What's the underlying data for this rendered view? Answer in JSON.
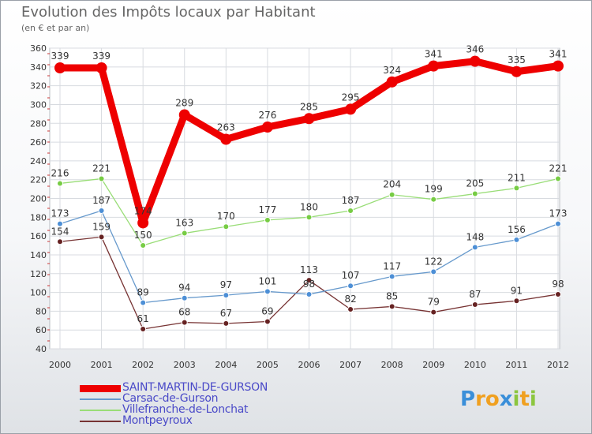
{
  "title": "Evolution des Impôts locaux par Habitant",
  "subtitle": "(en € et par an)",
  "brand": {
    "letters": [
      "P",
      "r",
      "o",
      "x",
      "i",
      "t",
      "i"
    ],
    "colors": [
      "#3a8fd9",
      "#f0a020",
      "#f0a020",
      "#3a8fd9",
      "#8cc63f",
      "#f0a020",
      "#8cc63f"
    ]
  },
  "chart_data": {
    "type": "line",
    "categories": [
      "2000",
      "2001",
      "2002",
      "2003",
      "2004",
      "2005",
      "2006",
      "2007",
      "2008",
      "2009",
      "2010",
      "2011",
      "2012"
    ],
    "ylim": [
      40,
      360
    ],
    "yticks": [
      40,
      60,
      80,
      100,
      120,
      140,
      160,
      180,
      200,
      220,
      240,
      260,
      280,
      300,
      320,
      340,
      360
    ],
    "grid": true,
    "legend_position": "bottom-left",
    "series": [
      {
        "name": "SAINT-MARTIN-DE-GURSON",
        "color": "#ee0000",
        "point_color": "#ee0000",
        "values": [
          339,
          339,
          174,
          289,
          263,
          276,
          285,
          295,
          324,
          341,
          346,
          335,
          341
        ],
        "labels": [
          "339",
          "339",
          "174",
          "289",
          "263",
          "276",
          "285",
          "295",
          "324",
          "341",
          "346",
          "335",
          "341"
        ]
      },
      {
        "name": "Carsac-de-Gurson",
        "color": "#6699cc",
        "point_color": "#4d8fd6",
        "values": [
          173,
          187,
          89,
          94,
          97,
          101,
          98,
          107,
          117,
          122,
          148,
          156,
          173
        ],
        "labels": [
          "173",
          "187",
          "89",
          "94",
          "97",
          "101",
          "98",
          "107",
          "117",
          "122",
          "148",
          "156",
          "173"
        ]
      },
      {
        "name": "Villefranche-de-Lonchat",
        "color": "#99dd77",
        "point_color": "#77cc44",
        "values": [
          216,
          221,
          150,
          163,
          170,
          177,
          180,
          187,
          204,
          199,
          205,
          211,
          221
        ],
        "labels": [
          "216",
          "221",
          "150",
          "163",
          "170",
          "177",
          "180",
          "187",
          "204",
          "199",
          "205",
          "211",
          "221"
        ]
      },
      {
        "name": "Montpeyroux",
        "color": "#773333",
        "point_color": "#662222",
        "values": [
          154,
          159,
          61,
          68,
          67,
          69,
          113,
          82,
          85,
          79,
          87,
          91,
          98
        ],
        "labels": [
          "154",
          "159",
          "61",
          "68",
          "67",
          "69",
          "113",
          "82",
          "85",
          "79",
          "87",
          "91",
          "98"
        ]
      }
    ]
  }
}
